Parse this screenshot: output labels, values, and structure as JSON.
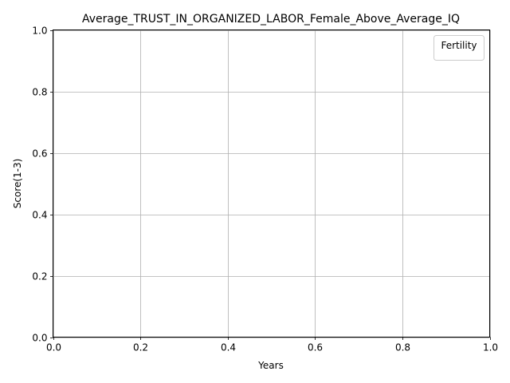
{
  "chart_data": {
    "type": "line",
    "title": "Average_TRUST_IN_ORGANIZED_LABOR_Female_Above_Average_IQ",
    "xlabel": "Years",
    "ylabel": "Score(1-3)",
    "xlim": [
      0.0,
      1.0
    ],
    "ylim": [
      0.0,
      1.0
    ],
    "xticks": [
      "0.0",
      "0.2",
      "0.4",
      "0.6",
      "0.8",
      "1.0"
    ],
    "yticks": [
      "0.0",
      "0.2",
      "0.4",
      "0.6",
      "0.8",
      "1.0"
    ],
    "grid": true,
    "legend": {
      "title": "Fertility",
      "placement": "top-right",
      "entries": []
    },
    "series": []
  }
}
